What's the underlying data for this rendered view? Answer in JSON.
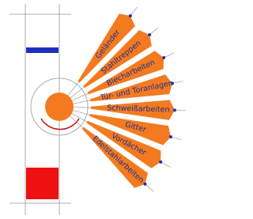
{
  "rays": [
    {
      "label": "Geländer"
    },
    {
      "label": "Stahltreppen"
    },
    {
      "label": "Blecharbeiten"
    },
    {
      "label": "Tür- und Toranlagen"
    },
    {
      "label": "Schweißarbeiten"
    },
    {
      "label": "Gitter"
    },
    {
      "label": "Vordächer"
    },
    {
      "label": "Edelstahlarbeiten"
    }
  ]
}
